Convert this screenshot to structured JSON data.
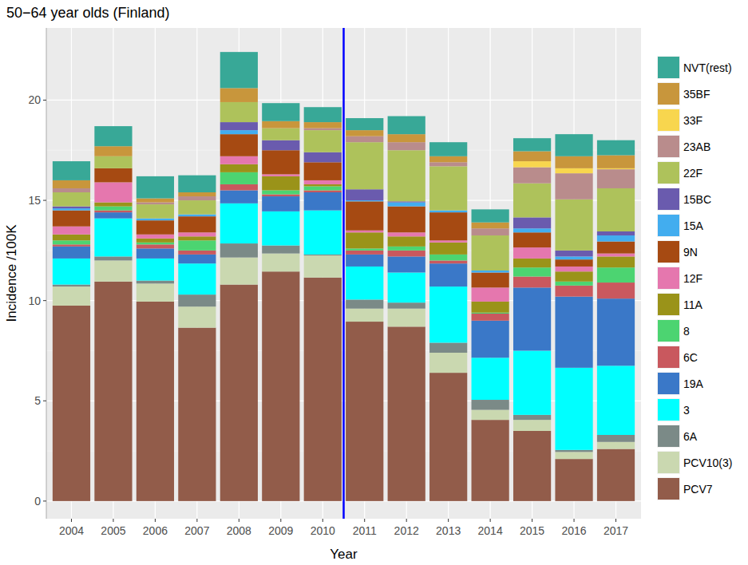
{
  "chart_data": {
    "type": "bar",
    "stacked": true,
    "grid": true,
    "legend": "right",
    "title": "50−64 year olds (Finland)",
    "x_label": "Year",
    "y_label": "Incidence /100K",
    "categories": [
      "2004",
      "2005",
      "2006",
      "2007",
      "2008",
      "2009",
      "2010",
      "2011",
      "2012",
      "2013",
      "2014",
      "2015",
      "2016",
      "2017"
    ],
    "ylim": [
      -0.88,
      23.6
    ],
    "yticks": [
      0,
      5,
      10,
      15,
      20
    ],
    "annotations": [
      {
        "type": "vline",
        "after": "2010",
        "color": "#0000ff"
      }
    ],
    "series": [
      {
        "name": "PCV7",
        "color": "#925c4a",
        "values": [
          9.75,
          10.95,
          9.95,
          8.65,
          10.8,
          11.45,
          11.15,
          8.95,
          8.7,
          6.4,
          4.05,
          3.5,
          2.1,
          2.6
        ]
      },
      {
        "name": "PCV10(3)",
        "color": "#cad8b0",
        "values": [
          0.95,
          1.05,
          0.9,
          1.05,
          1.35,
          0.9,
          1.1,
          0.65,
          0.9,
          1.0,
          0.5,
          0.55,
          0.35,
          0.35
        ]
      },
      {
        "name": "6A",
        "color": "#7b8a87",
        "values": [
          0.1,
          0.2,
          0.15,
          0.6,
          0.7,
          0.4,
          0.05,
          0.45,
          0.3,
          0.5,
          0.5,
          0.25,
          0.1,
          0.35
        ]
      },
      {
        "name": "3",
        "color": "#00ffff",
        "values": [
          1.3,
          1.9,
          1.1,
          1.55,
          2.0,
          1.7,
          2.2,
          1.65,
          1.5,
          2.8,
          2.1,
          3.2,
          4.1,
          3.45
        ]
      },
      {
        "name": "19A",
        "color": "#3a78c8",
        "values": [
          0.6,
          0.3,
          0.5,
          0.45,
          0.65,
          0.75,
          0.9,
          0.6,
          0.8,
          1.15,
          1.85,
          3.15,
          3.55,
          3.35
        ]
      },
      {
        "name": "6C",
        "color": "#c9585e",
        "values": [
          0.1,
          0.1,
          0.2,
          0.2,
          0.3,
          0.1,
          0.1,
          0.2,
          0.3,
          0.15,
          0.35,
          0.55,
          0.55,
          0.8
        ]
      },
      {
        "name": "8",
        "color": "#4cd471",
        "values": [
          0.2,
          0.2,
          0.1,
          0.5,
          0.6,
          0.2,
          0.2,
          0.1,
          0.2,
          0.3,
          0.05,
          0.45,
          0.2,
          0.75
        ]
      },
      {
        "name": "11A",
        "color": "#9a9319",
        "values": [
          0.3,
          0.2,
          0.2,
          0.2,
          0.4,
          0.7,
          0.1,
          0.8,
          0.5,
          0.6,
          0.55,
          0.45,
          0.5,
          0.55
        ]
      },
      {
        "name": "12F",
        "color": "#e577ae",
        "values": [
          0.4,
          1.0,
          0.2,
          0.2,
          0.4,
          0.1,
          0.2,
          0.1,
          0.2,
          0.1,
          0.7,
          0.55,
          0.25,
          0.15
        ]
      },
      {
        "name": "9N",
        "color": "#a64a12",
        "values": [
          0.8,
          0.7,
          0.7,
          0.8,
          1.1,
          1.2,
          0.9,
          1.45,
          1.3,
          1.4,
          0.75,
          0.75,
          0.35,
          0.6
        ]
      },
      {
        "name": "15A",
        "color": "#42adef",
        "values": [
          0.1,
          0,
          0.1,
          0.1,
          0.2,
          0,
          0,
          0.05,
          0.2,
          0.1,
          0.1,
          0.2,
          0.15,
          0.3
        ]
      },
      {
        "name": "15BC",
        "color": "#6a5bae",
        "values": [
          0.1,
          0,
          0,
          0,
          0.4,
          0.5,
          0.5,
          0.55,
          0.05,
          0,
          0,
          0.55,
          0.3,
          0.2
        ]
      },
      {
        "name": "22F",
        "color": "#aec25b",
        "values": [
          0.7,
          0.6,
          0.7,
          0.7,
          1.0,
          0.6,
          1.1,
          2.35,
          2.55,
          2.2,
          1.75,
          1.7,
          2.55,
          2.15
        ]
      },
      {
        "name": "23AB",
        "color": "#b98c8c",
        "values": [
          0.2,
          0,
          0.1,
          0.2,
          0,
          0,
          0.1,
          0.3,
          0.4,
          0.2,
          0.35,
          0.8,
          1.3,
          0.95
        ]
      },
      {
        "name": "33F",
        "color": "#f8d64e",
        "values": [
          0,
          0,
          0,
          0,
          0,
          0,
          0,
          0,
          0,
          0,
          0,
          0.3,
          0.25,
          0.05
        ]
      },
      {
        "name": "35BF",
        "color": "#c8963c",
        "values": [
          0.4,
          0.5,
          0.2,
          0.2,
          0.7,
          0.35,
          0.3,
          0.3,
          0.4,
          0.3,
          0.3,
          0.5,
          0.6,
          0.65
        ]
      },
      {
        "name": "NVT(rest)",
        "color": "#38a897",
        "values": [
          0.95,
          1.0,
          1.1,
          0.85,
          1.8,
          0.9,
          0.75,
          0.6,
          0.9,
          0.7,
          0.65,
          0.65,
          1.1,
          0.75
        ]
      }
    ]
  }
}
